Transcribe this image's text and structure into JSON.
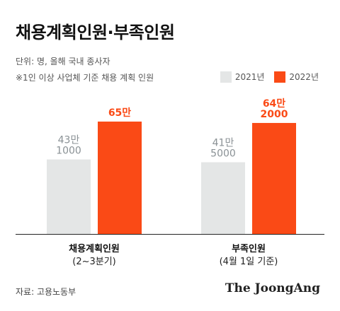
{
  "title": "채용계획인원·부족인원",
  "unit_note": "단위: 명, 올해 국내 종사자",
  "basis_note": "※1인 이상 사업체 기준 채용 계획 인원",
  "source": "자료: 고용노동부",
  "brand": "The JoongAng",
  "colors": {
    "y2021": "#e4e6e6",
    "y2022": "#fa4a16",
    "label2021": "#8a9195",
    "label2022": "#fa4a16"
  },
  "chart_data": {
    "type": "bar",
    "categories": [
      "채용계획인원",
      "부족인원"
    ],
    "category_notes": [
      "(2~3분기)",
      "(4월 1일 기준)"
    ],
    "series": [
      {
        "name": "2021년",
        "values": [
          431000,
          415000
        ],
        "value_labels": [
          [
            "43만",
            "1000"
          ],
          [
            "41만",
            "5000"
          ]
        ]
      },
      {
        "name": "2022년",
        "values": [
          650000,
          642000
        ],
        "value_labels": [
          [
            "65만"
          ],
          [
            "64만",
            "2000"
          ]
        ]
      }
    ],
    "ylim": [
      0,
      650000
    ],
    "grid": false,
    "legend": "top-right"
  }
}
